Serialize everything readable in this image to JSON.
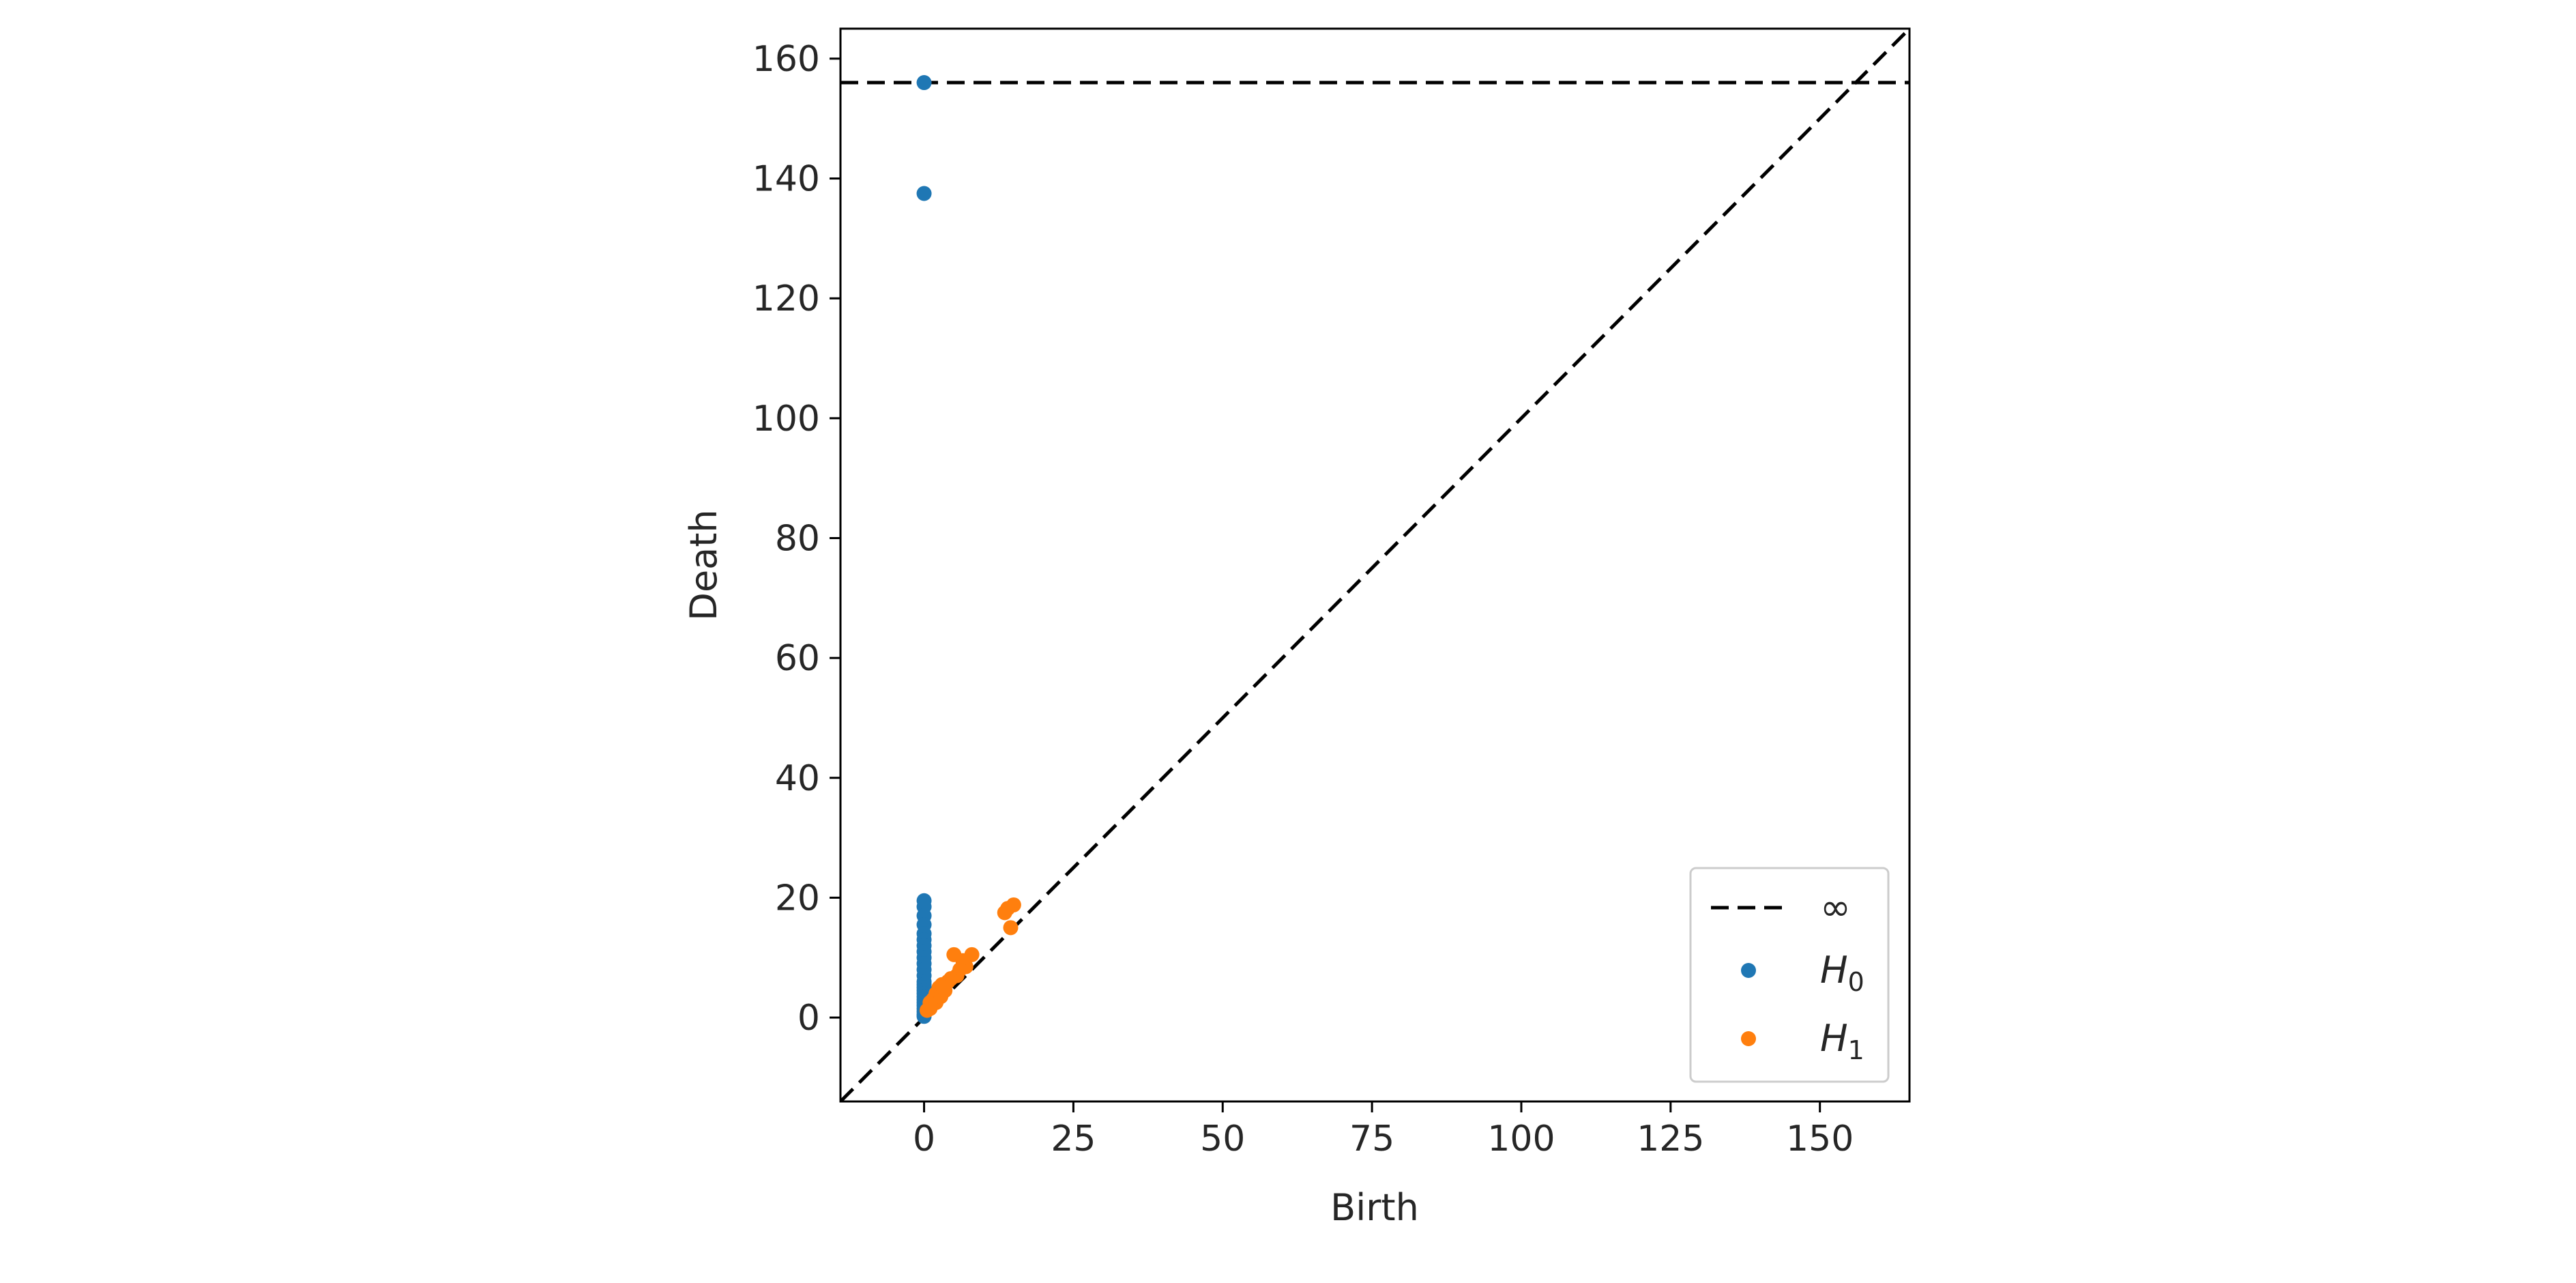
{
  "chart_data": {
    "type": "scatter",
    "title": "",
    "xlabel": "Birth",
    "ylabel": "Death",
    "xlim": [
      -14,
      165
    ],
    "ylim": [
      -14,
      165
    ],
    "xticks": [
      0,
      25,
      50,
      75,
      100,
      125,
      150
    ],
    "yticks": [
      0,
      20,
      40,
      60,
      80,
      100,
      120,
      140,
      160
    ],
    "infinity_line": {
      "label": "∞",
      "value": 156
    },
    "diagonal": true,
    "legend": {
      "placement": "lower-right",
      "entries": [
        {
          "name": "∞",
          "kind": "dashed-line",
          "color": "#000000"
        },
        {
          "name": "H",
          "subscript": "0",
          "kind": "marker",
          "color": "#1f77b4"
        },
        {
          "name": "H",
          "subscript": "1",
          "kind": "marker",
          "color": "#ff7f0e"
        }
      ]
    },
    "series": [
      {
        "name": "H0",
        "color": "#1f77b4",
        "points": [
          [
            0,
            156
          ],
          [
            0,
            137.5
          ],
          [
            0,
            19.5
          ],
          [
            0,
            18.5
          ],
          [
            0,
            17
          ],
          [
            0,
            15.5
          ],
          [
            0,
            14
          ],
          [
            0,
            13
          ],
          [
            0,
            12
          ],
          [
            0,
            11
          ],
          [
            0,
            10
          ],
          [
            0,
            9
          ],
          [
            0,
            8
          ],
          [
            0,
            7
          ],
          [
            0,
            6
          ],
          [
            0,
            5.5
          ],
          [
            0,
            5
          ],
          [
            0,
            4.5
          ],
          [
            0,
            4
          ],
          [
            0,
            3.5
          ],
          [
            0,
            3
          ],
          [
            0,
            2.5
          ],
          [
            0,
            2
          ],
          [
            0,
            1.5
          ],
          [
            0,
            1
          ],
          [
            0,
            0.5
          ],
          [
            0,
            0.2
          ]
        ]
      },
      {
        "name": "H1",
        "color": "#ff7f0e",
        "points": [
          [
            15,
            18.8
          ],
          [
            14,
            18.2
          ],
          [
            13.5,
            17.5
          ],
          [
            14.5,
            15
          ],
          [
            5,
            10.5
          ],
          [
            8,
            10.5
          ],
          [
            6.5,
            9.5
          ],
          [
            7,
            8.5
          ],
          [
            6,
            8
          ],
          [
            5.5,
            7
          ],
          [
            4,
            6
          ],
          [
            3,
            5.5
          ],
          [
            2.5,
            5
          ],
          [
            2,
            4
          ],
          [
            1.5,
            3
          ],
          [
            3.5,
            4.5
          ],
          [
            1,
            2.5
          ],
          [
            1,
            1.5
          ],
          [
            0.5,
            1.2
          ],
          [
            2,
            2.5
          ],
          [
            4.5,
            6.5
          ],
          [
            2.8,
            3.5
          ],
          [
            3.2,
            5
          ]
        ]
      }
    ]
  }
}
